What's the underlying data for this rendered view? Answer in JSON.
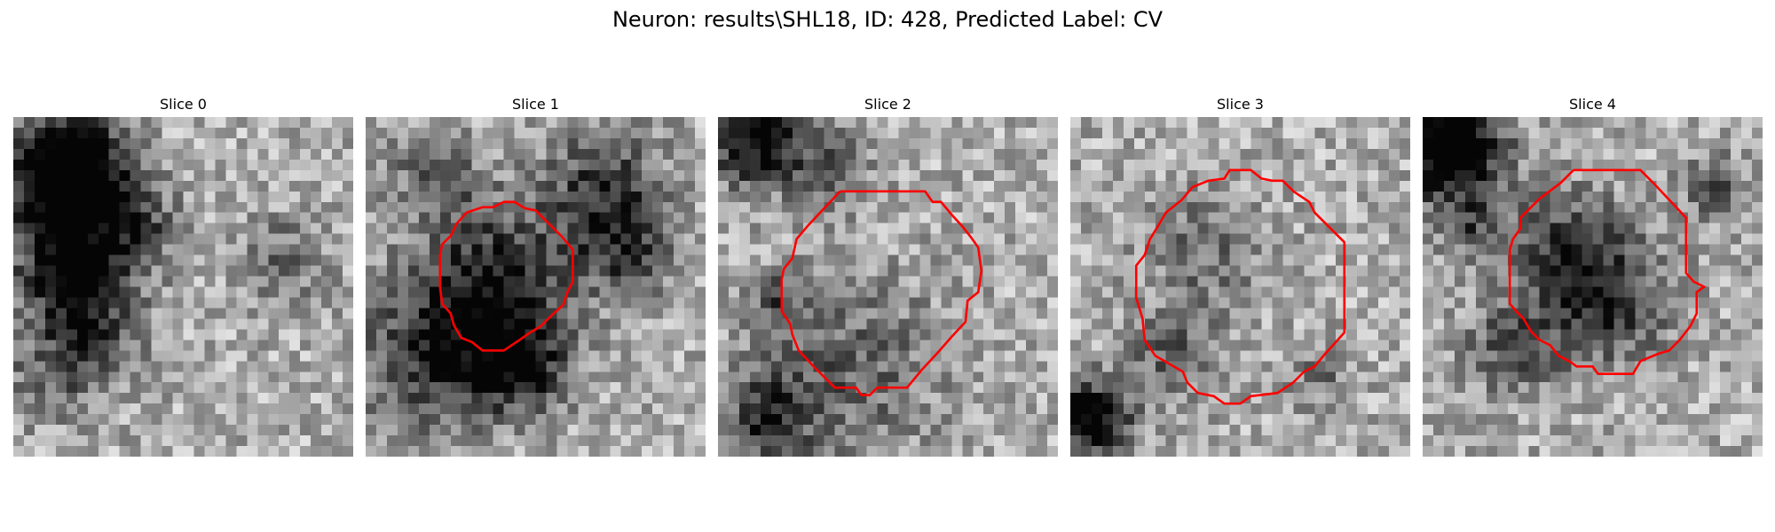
{
  "figure": {
    "title": "Neuron: results\\SHL18, ID: 428, Predicted Label: CV",
    "outline_color": "#ff0000",
    "colormap": "gray"
  },
  "slices": [
    {
      "label": "Slice 0",
      "outline": false
    },
    {
      "label": "Slice 1",
      "outline": true
    },
    {
      "label": "Slice 2",
      "outline": true
    },
    {
      "label": "Slice 3",
      "outline": true
    },
    {
      "label": "Slice 4",
      "outline": true
    }
  ]
}
